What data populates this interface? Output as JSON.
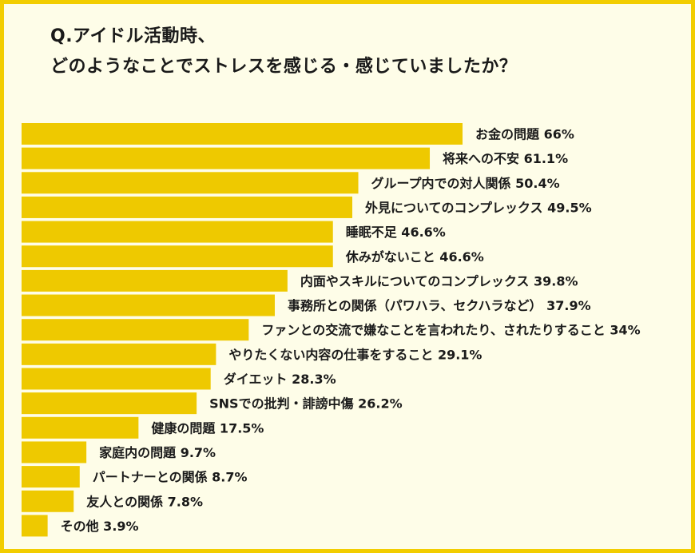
{
  "title": {
    "line1": "Q.アイドル活動時、",
    "line2": "どのようなことでストレスを感じる・感じていましたか？"
  },
  "colors": {
    "bar": "#eec900",
    "frame": "#f2cd00",
    "background": "#fefde8",
    "text": "#1a1a1a"
  },
  "chart_data": {
    "type": "bar",
    "orientation": "horizontal",
    "unit": "%",
    "categories": [
      "お金の問題",
      "将来への不安",
      "グループ内での対人関係",
      "外見についてのコンプレックス",
      "睡眠不足",
      "休みがないこと",
      "内面やスキルについてのコンプレックス",
      "事務所との関係（パワハラ、セクハラなど）",
      "ファンとの交流で嫌なことを言われたり、されたりすること",
      "やりたくない内容の仕事をすること",
      "ダイエット",
      "SNSでの批判・誹謗中傷",
      "健康の問題",
      "家庭内の問題",
      "パートナーとの関係",
      "友人との関係",
      "その他"
    ],
    "values": [
      66,
      61.1,
      50.4,
      49.5,
      46.6,
      46.6,
      39.8,
      37.9,
      34,
      29.1,
      28.3,
      26.2,
      17.5,
      9.7,
      8.7,
      7.8,
      3.9
    ],
    "labels": [
      "お金の問題 66%",
      "将来への不安 61.1%",
      "グループ内での対人関係 50.4%",
      "外見についてのコンプレックス 49.5%",
      "睡眠不足 46.6%",
      "休みがないこと 46.6%",
      "内面やスキルについてのコンプレックス 39.8%",
      "事務所との関係（パワハラ、セクハラなど） 37.9%",
      "ファンとの交流で嫌なことを言われたり、されたりすること 34%",
      "やりたくない内容の仕事をすること 29.1%",
      "ダイエット 28.3%",
      "SNSでの批判・誹謗中傷 26.2%",
      "健康の問題 17.5%",
      "家庭内の問題 9.7%",
      "パートナーとの関係 8.7%",
      "友人との関係 7.8%",
      "その他 3.9%"
    ],
    "xlim": [
      0,
      66
    ],
    "grid": false,
    "legend": "none"
  }
}
